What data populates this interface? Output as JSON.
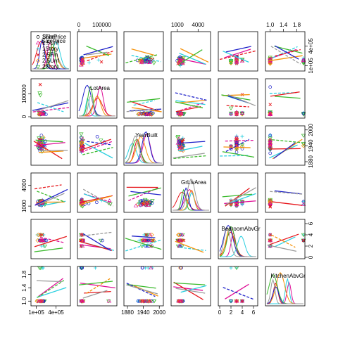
{
  "chart_data": {
    "type": "scatter",
    "variables": [
      {
        "name": "SalePrice",
        "range": [
          40000,
          600000
        ]
      },
      {
        "name": "LotArea",
        "range": [
          0,
          160000
        ]
      },
      {
        "name": "YearBuilt",
        "range": [
          1872,
          2010
        ]
      },
      {
        "name": "GrLivArea",
        "range": [
          300,
          5600
        ]
      },
      {
        "name": "BedroomAbvGr",
        "range": [
          0,
          6.5
        ]
      },
      {
        "name": "KitchenAbvGr",
        "range": [
          0.9,
          2.0
        ]
      }
    ],
    "series": [
      {
        "name": "1Fam",
        "color": "#000000",
        "marker": "circle"
      },
      {
        "name": "1.5Unf",
        "color": "#df0f97",
        "marker": "triangle-up"
      },
      {
        "name": "1Story",
        "color": "#2bd0e0",
        "marker": "plus"
      },
      {
        "name": "2.5Fin",
        "color": "#e6171c",
        "marker": "cross"
      },
      {
        "name": "2.5Unf",
        "color": "#f5930c",
        "marker": "diamond"
      },
      {
        "name": "2Story",
        "color": "#3cba2e",
        "marker": "triangle-down"
      },
      {
        "name": "",
        "color": "#1f22c9",
        "marker": "circle"
      },
      {
        "name": "",
        "color": "#9a9a9a",
        "marker": "circle"
      }
    ],
    "legend_header": "SalePrice",
    "legend_placement": "top-left",
    "top_axes": [
      {
        "panel": 1,
        "ticks": [
          {
            "v": 0,
            "label": "0"
          },
          {
            "v": 100000,
            "label": "100000"
          }
        ]
      },
      {
        "panel": 3,
        "ticks": [
          {
            "v": 1000,
            "label": "1000"
          },
          {
            "v": 4000,
            "label": "4000"
          }
        ]
      },
      {
        "panel": 5,
        "ticks": [
          {
            "v": 1.0,
            "label": "1.0"
          },
          {
            "v": 1.4,
            "label": "1.4"
          },
          {
            "v": 1.8,
            "label": "1.8"
          }
        ]
      }
    ],
    "bottom_axes": [
      {
        "panel": 0,
        "ticks": [
          {
            "v": 100000,
            "label": "1e+05"
          },
          {
            "v": 400000,
            "label": "4e+05"
          }
        ]
      },
      {
        "panel": 2,
        "ticks": [
          {
            "v": 1880,
            "label": "1880"
          },
          {
            "v": 1940,
            "label": "1940"
          },
          {
            "v": 2000,
            "label": "2000"
          }
        ]
      },
      {
        "panel": 4,
        "ticks": [
          {
            "v": 0,
            "label": "0"
          },
          {
            "v": 2,
            "label": "2"
          },
          {
            "v": 4,
            "label": "4"
          },
          {
            "v": 6,
            "label": "6"
          }
        ]
      }
    ],
    "left_axes": [
      {
        "panel": 1,
        "ticks": [
          {
            "v": 0,
            "label": "0"
          },
          {
            "v": 100000,
            "label": "100000"
          }
        ]
      },
      {
        "panel": 3,
        "ticks": [
          {
            "v": 1000,
            "label": "1000"
          },
          {
            "v": 4000,
            "label": "4000"
          }
        ]
      },
      {
        "panel": 5,
        "ticks": [
          {
            "v": 1.0,
            "label": "1.0"
          },
          {
            "v": 1.4,
            "label": "1.4"
          },
          {
            "v": 1.8,
            "label": "1.8"
          }
        ]
      }
    ],
    "right_axes": [
      {
        "panel": 0,
        "ticks": [
          {
            "v": 100000,
            "label": "1e+05"
          },
          {
            "v": 400000,
            "label": "4e+05"
          }
        ]
      },
      {
        "panel": 2,
        "ticks": [
          {
            "v": 1880,
            "label": "1880"
          },
          {
            "v": 1940,
            "label": "1940"
          },
          {
            "v": 2000,
            "label": "2000"
          }
        ]
      },
      {
        "panel": 4,
        "ticks": [
          {
            "v": 0,
            "label": "0"
          },
          {
            "v": 2,
            "label": "2"
          },
          {
            "v": 4,
            "label": "4"
          },
          {
            "v": 6,
            "label": "6"
          }
        ]
      }
    ],
    "grid": false
  }
}
